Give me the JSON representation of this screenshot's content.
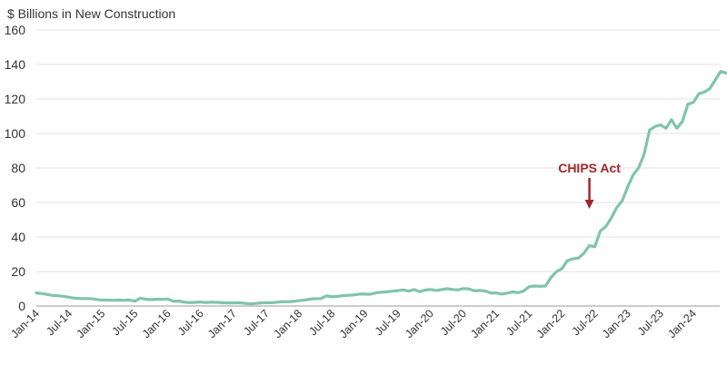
{
  "chart_data": {
    "type": "line",
    "title": "",
    "ylabel": "$ Billions in New Construction",
    "xlabel": "",
    "ylim": [
      0,
      160
    ],
    "yticks": [
      "0",
      "20",
      "40",
      "60",
      "80",
      "100",
      "120",
      "140",
      "160"
    ],
    "xticks": [
      "Jan-14",
      "Jul-14",
      "Jan-15",
      "Jul-15",
      "Jan-16",
      "Jul-16",
      "Jan-17",
      "Jul-17",
      "Jan-18",
      "Jul-18",
      "Jan-19",
      "Jul-19",
      "Jan-20",
      "Jul-20",
      "Jan-21",
      "Jul-21",
      "Jan-22",
      "Jul-22",
      "Jan-23",
      "Jul-23",
      "Jan-24"
    ],
    "grid": "horizontal",
    "legend": "none",
    "line_color": "#7fc4ad",
    "x_start": "Jan-14",
    "series": [
      {
        "values": [
          7.6,
          7.2,
          6.7,
          6.1,
          5.9,
          5.6,
          5.0,
          4.5,
          4.3,
          4.3,
          4.2,
          3.8,
          3.4,
          3.4,
          3.3,
          3.4,
          3.3,
          3.5,
          2.8,
          4.5,
          3.9,
          3.7,
          3.9,
          3.9,
          4.0,
          2.8,
          2.9,
          2.2,
          2.0,
          2.1,
          2.3,
          2.0,
          2.2,
          2.1,
          1.9,
          1.8,
          1.8,
          1.9,
          1.6,
          1.2,
          1.4,
          1.8,
          1.9,
          1.9,
          2.2,
          2.5,
          2.5,
          2.7,
          3.1,
          3.4,
          4.0,
          4.2,
          4.3,
          5.9,
          5.3,
          5.6,
          6.0,
          6.2,
          6.4,
          6.9,
          6.9,
          6.8,
          7.6,
          8.0,
          8.2,
          8.6,
          8.9,
          9.3,
          8.6,
          9.5,
          8.3,
          9.2,
          9.6,
          9.0,
          9.5,
          10.0,
          9.6,
          9.3,
          10.1,
          9.9,
          8.8,
          9.0,
          8.7,
          7.5,
          7.6,
          6.9,
          7.5,
          8.2,
          7.7,
          8.7,
          11.2,
          11.6,
          11.4,
          11.6,
          16.5,
          19.9,
          21.7,
          26.3,
          27.3,
          27.8,
          30.6,
          35.0,
          34.3,
          43.5,
          46.0,
          51.0,
          57.0,
          61.0,
          69.0,
          76.0,
          80.0,
          88.0,
          102.0,
          104.0,
          105.0,
          103.0,
          108.0,
          103.0,
          107.0,
          117.0,
          118.0,
          123.0,
          124.0,
          126.0,
          131.0,
          136.0,
          135.0
        ]
      }
    ],
    "annotations": [
      {
        "text": "CHIPS Act",
        "x": "Aug-22",
        "color": "#a0262d"
      }
    ]
  }
}
